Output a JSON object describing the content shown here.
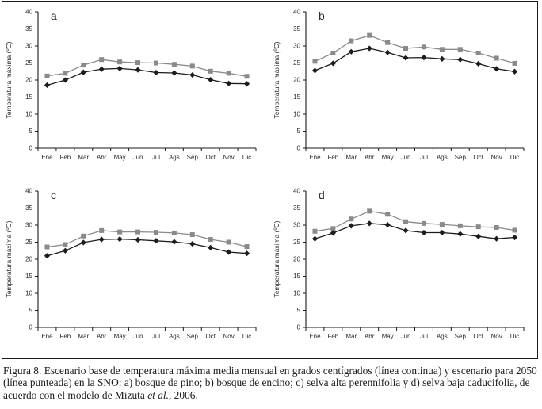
{
  "figure": {
    "caption_prefix": "Figura 8. Escenario base de temperatura máxima media mensual en grados centígrados (línea continua) y escenario para 2050 (línea punteada) en la SNO: a) bosque de pino; b) bosque de encino; c) selva alta perennifolia y d) selva baja caducifolia, de acuerdo con el modelo de Mizuta ",
    "caption_italic": "et al.",
    "caption_suffix": ", 2006."
  },
  "colors": {
    "axis": "#1a1a1a",
    "series_base": "#1c1c1c",
    "series_2050": "#8a8a8a"
  },
  "chart_data": [
    {
      "type": "line",
      "label": "a",
      "name": "bosque de pino",
      "ylabel": "Temperatura máxima (ºC)",
      "categories": [
        "Ene",
        "Feb",
        "Mar",
        "Abr",
        "May",
        "Jun",
        "Jul",
        "Ags",
        "Sep",
        "Oct",
        "Nov",
        "Dic"
      ],
      "ylim": [
        0,
        40
      ],
      "yticks": [
        0,
        5,
        10,
        15,
        20,
        25,
        30,
        35,
        40
      ],
      "grid": false,
      "legend": "none",
      "series": [
        {
          "name": "Escenario base (línea continua)",
          "marker": "diamond",
          "color": "#1c1c1c",
          "values": [
            18.5,
            20.0,
            22.3,
            23.2,
            23.4,
            23.0,
            22.2,
            22.1,
            21.5,
            20.1,
            19.0,
            18.9
          ]
        },
        {
          "name": "Escenario para 2050 (línea punteada)",
          "marker": "square",
          "color": "#8a8a8a",
          "values": [
            21.2,
            22.0,
            24.4,
            26.0,
            25.3,
            25.1,
            25.0,
            24.6,
            24.1,
            22.6,
            22.0,
            21.1
          ]
        }
      ]
    },
    {
      "type": "line",
      "label": "b",
      "name": "bosque de encino",
      "ylabel": "Temperatura máxima (ºC)",
      "categories": [
        "Ene",
        "Feb",
        "Mar",
        "Abr",
        "May",
        "Jun",
        "Jul",
        "Ags",
        "Sep",
        "Oct",
        "Nov",
        "Dic"
      ],
      "ylim": [
        0,
        40
      ],
      "yticks": [
        0,
        5,
        10,
        15,
        20,
        25,
        30,
        35,
        40
      ],
      "grid": false,
      "legend": "none",
      "series": [
        {
          "name": "Escenario base (línea continua)",
          "marker": "diamond",
          "color": "#1c1c1c",
          "values": [
            22.8,
            24.9,
            28.3,
            29.3,
            28.1,
            26.5,
            26.6,
            26.2,
            26.0,
            24.8,
            23.3,
            22.5
          ]
        },
        {
          "name": "Escenario para 2050 (línea punteada)",
          "marker": "square",
          "color": "#8a8a8a",
          "values": [
            25.5,
            27.9,
            31.5,
            33.1,
            31.0,
            29.3,
            29.7,
            29.0,
            29.0,
            27.9,
            26.4,
            24.9
          ]
        }
      ]
    },
    {
      "type": "line",
      "label": "c",
      "name": "selva alta perennifolia",
      "ylabel": "Temperatura máxima (ºC)",
      "categories": [
        "Ene",
        "Feb",
        "Mar",
        "Abr",
        "May",
        "Jun",
        "Jul",
        "Ags",
        "Sep",
        "Oct",
        "Nov",
        "Dic"
      ],
      "ylim": [
        0,
        40
      ],
      "yticks": [
        0,
        5,
        10,
        15,
        20,
        25,
        30,
        35,
        40
      ],
      "grid": false,
      "legend": "none",
      "series": [
        {
          "name": "Escenario base (línea continua)",
          "marker": "diamond",
          "color": "#1c1c1c",
          "values": [
            21.0,
            22.5,
            24.9,
            25.8,
            25.9,
            25.7,
            25.4,
            25.1,
            24.5,
            23.4,
            22.1,
            21.7
          ]
        },
        {
          "name": "Escenario para 2050 (línea punteada)",
          "marker": "square",
          "color": "#8a8a8a",
          "values": [
            23.6,
            24.3,
            26.8,
            28.4,
            28.0,
            28.0,
            27.9,
            27.7,
            27.2,
            25.8,
            25.0,
            23.7
          ]
        }
      ]
    },
    {
      "type": "line",
      "label": "d",
      "name": "selva baja caducifolia",
      "ylabel": "Temperatura máxima (ºC)",
      "categories": [
        "Ene",
        "Feb",
        "Mar",
        "Abr",
        "May",
        "Jun",
        "Jul",
        "Ags",
        "Sep",
        "Oct",
        "Nov",
        "Dic"
      ],
      "ylim": [
        0,
        40
      ],
      "yticks": [
        0,
        5,
        10,
        15,
        20,
        25,
        30,
        35,
        40
      ],
      "grid": false,
      "legend": "none",
      "series": [
        {
          "name": "Escenario base (línea continua)",
          "marker": "diamond",
          "color": "#1c1c1c",
          "values": [
            26.0,
            27.7,
            29.8,
            30.5,
            30.1,
            28.4,
            27.8,
            27.8,
            27.4,
            26.7,
            26.0,
            26.4
          ]
        },
        {
          "name": "Escenario para 2050 (línea punteada)",
          "marker": "square",
          "color": "#8a8a8a",
          "values": [
            28.2,
            29.0,
            31.8,
            34.1,
            33.2,
            31.0,
            30.5,
            30.2,
            29.8,
            29.5,
            29.3,
            28.5
          ]
        }
      ]
    }
  ]
}
